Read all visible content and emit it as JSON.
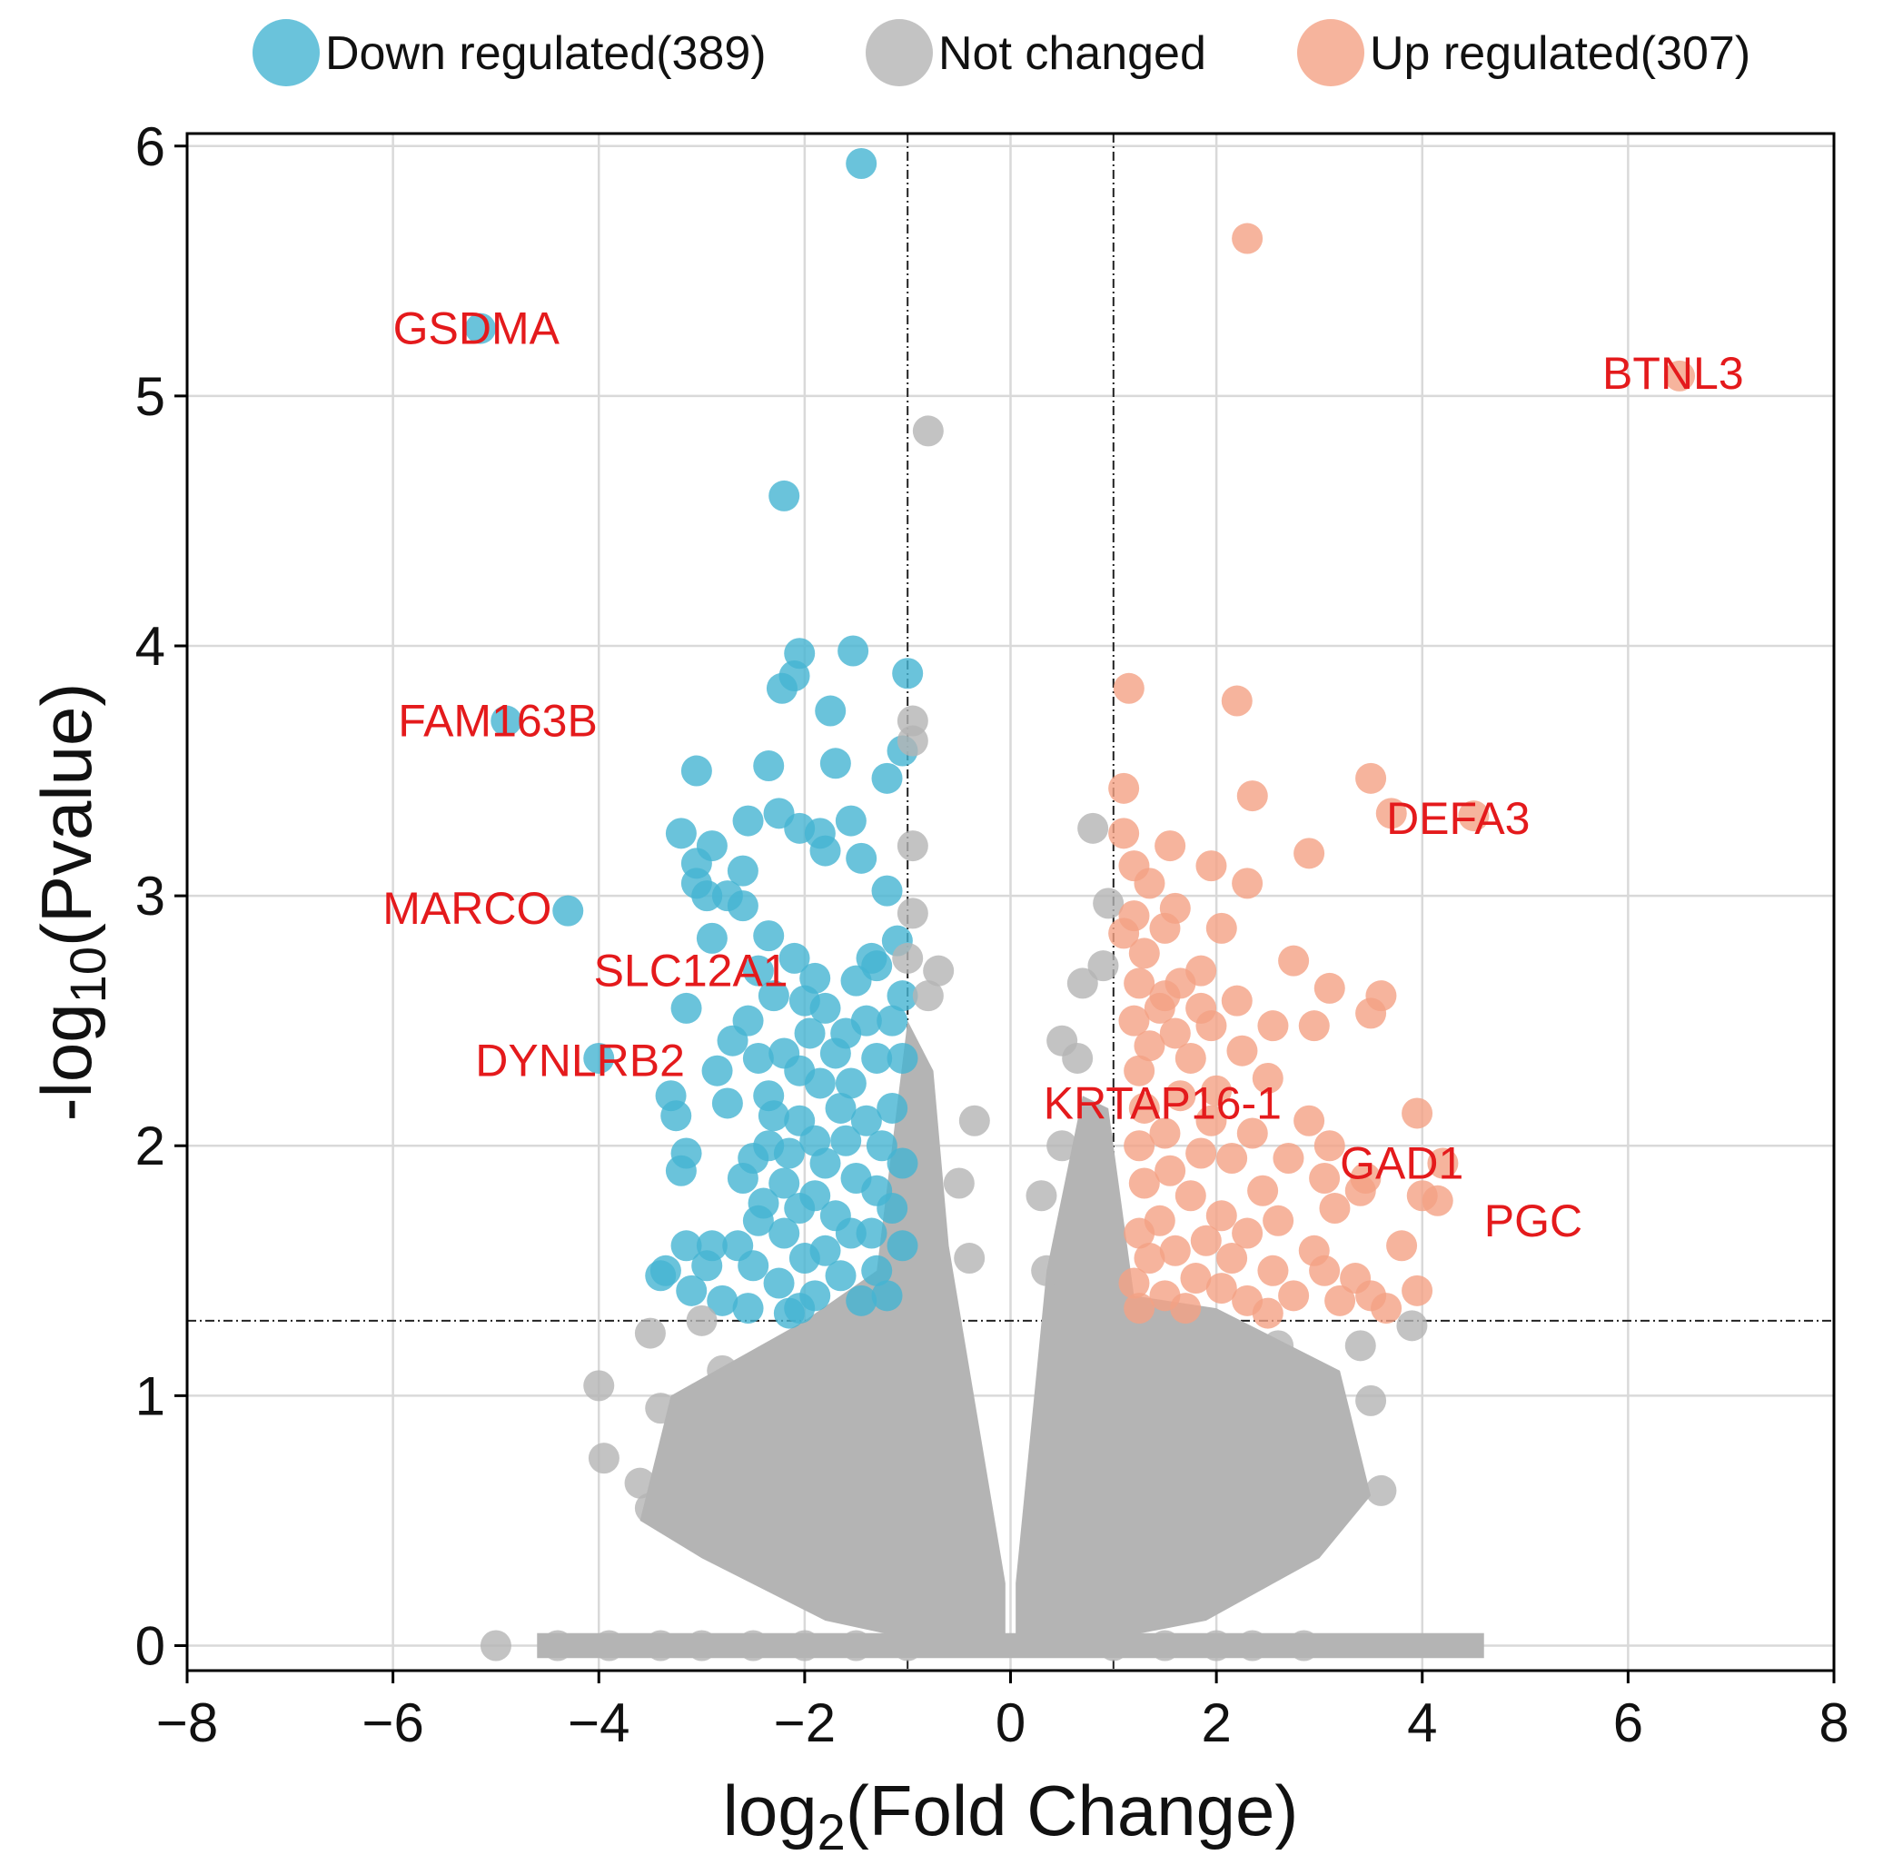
{
  "chart_data": {
    "type": "scatter",
    "xlabel": {
      "main": "log",
      "sub": "2",
      "rest": "(Fold Change)"
    },
    "ylabel": {
      "main": "-log",
      "sub": "10",
      "rest": "(Pvalue)"
    },
    "xlim": [
      -8,
      8
    ],
    "ylim": [
      -0.1,
      6.05
    ],
    "xticks": [
      -8,
      -6,
      -4,
      -2,
      0,
      2,
      4,
      6,
      8
    ],
    "xtick_labels": [
      "−8",
      "−6",
      "−4",
      "−2",
      "0",
      "2",
      "4",
      "6",
      "8"
    ],
    "yticks": [
      0,
      1,
      2,
      3,
      4,
      5,
      6
    ],
    "ytick_labels": [
      "0",
      "1",
      "2",
      "3",
      "4",
      "5",
      "6"
    ],
    "grid": true,
    "legend_placement": "top",
    "thresholds": {
      "fold_change": [
        -1,
        1
      ],
      "pvalue": 1.3
    },
    "colors": {
      "down": "#45b4d2",
      "nc": "#b4b4b4",
      "up": "#f4a185",
      "threshold_line": "#222222",
      "label": "#e41a1c"
    },
    "series": [
      {
        "key": "down",
        "name": "Down regulated(389)",
        "points": [
          [
            -1.45,
            5.93
          ],
          [
            -2.2,
            4.6
          ],
          [
            -5.15,
            5.27
          ],
          [
            -4.9,
            3.7
          ],
          [
            -4.3,
            2.94
          ],
          [
            -4.0,
            2.35
          ],
          [
            -1.53,
            3.98
          ],
          [
            -2.05,
            3.97
          ],
          [
            -2.1,
            3.88
          ],
          [
            -2.22,
            3.83
          ],
          [
            -1.0,
            3.89
          ],
          [
            -1.75,
            3.74
          ],
          [
            -3.05,
            3.5
          ],
          [
            -2.35,
            3.52
          ],
          [
            -1.7,
            3.53
          ],
          [
            -1.05,
            3.58
          ],
          [
            -1.2,
            3.47
          ],
          [
            -2.25,
            3.33
          ],
          [
            -2.55,
            3.3
          ],
          [
            -1.55,
            3.3
          ],
          [
            -2.05,
            3.27
          ],
          [
            -1.85,
            3.25
          ],
          [
            -3.2,
            3.25
          ],
          [
            -2.9,
            3.2
          ],
          [
            -3.05,
            3.13
          ],
          [
            -2.6,
            3.1
          ],
          [
            -1.8,
            3.18
          ],
          [
            -1.45,
            3.15
          ],
          [
            -2.95,
            3.0
          ],
          [
            -3.05,
            3.05
          ],
          [
            -2.75,
            3.0
          ],
          [
            -1.2,
            3.02
          ],
          [
            -2.6,
            2.96
          ],
          [
            -2.35,
            2.84
          ],
          [
            -2.9,
            2.83
          ],
          [
            -1.35,
            2.75
          ],
          [
            -1.1,
            2.82
          ],
          [
            -2.45,
            2.7
          ],
          [
            -2.1,
            2.75
          ],
          [
            -1.9,
            2.67
          ],
          [
            -1.5,
            2.66
          ],
          [
            -1.3,
            2.72
          ],
          [
            -1.05,
            2.6
          ],
          [
            -2.3,
            2.6
          ],
          [
            -2.0,
            2.58
          ],
          [
            -1.8,
            2.55
          ],
          [
            -1.4,
            2.5
          ],
          [
            -1.15,
            2.5
          ],
          [
            -3.15,
            2.55
          ],
          [
            -2.85,
            2.3
          ],
          [
            -2.55,
            2.5
          ],
          [
            -2.7,
            2.42
          ],
          [
            -1.95,
            2.45
          ],
          [
            -1.6,
            2.45
          ],
          [
            -2.45,
            2.35
          ],
          [
            -2.2,
            2.37
          ],
          [
            -1.7,
            2.37
          ],
          [
            -1.3,
            2.35
          ],
          [
            -1.05,
            2.35
          ],
          [
            -2.35,
            2.2
          ],
          [
            -2.05,
            2.3
          ],
          [
            -1.85,
            2.25
          ],
          [
            -1.55,
            2.25
          ],
          [
            -3.3,
            2.2
          ],
          [
            -3.25,
            2.12
          ],
          [
            -2.75,
            2.17
          ],
          [
            -2.3,
            2.12
          ],
          [
            -1.15,
            2.15
          ],
          [
            -1.65,
            2.15
          ],
          [
            -2.05,
            2.1
          ],
          [
            -1.4,
            2.1
          ],
          [
            -1.9,
            2.02
          ],
          [
            -2.15,
            1.97
          ],
          [
            -2.35,
            2.0
          ],
          [
            -1.6,
            2.02
          ],
          [
            -1.25,
            2.0
          ],
          [
            -3.15,
            1.97
          ],
          [
            -2.5,
            1.95
          ],
          [
            -2.6,
            1.87
          ],
          [
            -1.8,
            1.93
          ],
          [
            -1.05,
            1.93
          ],
          [
            -3.2,
            1.9
          ],
          [
            -2.2,
            1.85
          ],
          [
            -1.5,
            1.87
          ],
          [
            -1.3,
            1.82
          ],
          [
            -1.9,
            1.8
          ],
          [
            -2.4,
            1.77
          ],
          [
            -2.05,
            1.75
          ],
          [
            -1.7,
            1.72
          ],
          [
            -1.15,
            1.75
          ],
          [
            -2.2,
            1.65
          ],
          [
            -2.45,
            1.7
          ],
          [
            -1.55,
            1.65
          ],
          [
            -1.35,
            1.65
          ],
          [
            -2.9,
            1.6
          ],
          [
            -2.65,
            1.6
          ],
          [
            -3.15,
            1.6
          ],
          [
            -2.0,
            1.55
          ],
          [
            -1.8,
            1.58
          ],
          [
            -1.05,
            1.6
          ],
          [
            -3.4,
            1.48
          ],
          [
            -2.95,
            1.52
          ],
          [
            -2.5,
            1.52
          ],
          [
            -2.25,
            1.45
          ],
          [
            -1.65,
            1.48
          ],
          [
            -1.3,
            1.5
          ],
          [
            -3.1,
            1.42
          ],
          [
            -2.8,
            1.38
          ],
          [
            -2.55,
            1.35
          ],
          [
            -1.9,
            1.4
          ],
          [
            -2.05,
            1.35
          ],
          [
            -1.45,
            1.38
          ],
          [
            -1.2,
            1.4
          ],
          [
            -3.35,
            1.5
          ],
          [
            -2.15,
            1.33
          ]
        ]
      },
      {
        "key": "nc",
        "name": "Not changed",
        "points": [
          [
            -0.8,
            4.86
          ],
          [
            -0.95,
            3.7
          ],
          [
            -0.95,
            3.62
          ],
          [
            -0.95,
            3.2
          ],
          [
            -0.95,
            2.93
          ],
          [
            -1.0,
            2.75
          ],
          [
            -0.7,
            2.7
          ],
          [
            -0.8,
            2.6
          ],
          [
            0.8,
            3.27
          ],
          [
            0.95,
            2.97
          ],
          [
            0.9,
            2.72
          ],
          [
            0.7,
            2.65
          ],
          [
            0.5,
            2.42
          ],
          [
            0.65,
            2.35
          ],
          [
            -0.35,
            2.1
          ],
          [
            0.5,
            2.0
          ],
          [
            -0.5,
            1.85
          ],
          [
            0.3,
            1.8
          ],
          [
            -0.4,
            1.55
          ],
          [
            0.35,
            1.5
          ],
          [
            -5.0,
            0.0
          ],
          [
            -4.4,
            0.0
          ],
          [
            -3.9,
            0.0
          ],
          [
            -3.4,
            0.0
          ],
          [
            -3.0,
            0.0
          ],
          [
            -2.5,
            0.0
          ],
          [
            -2.0,
            0.0
          ],
          [
            -1.5,
            0.0
          ],
          [
            -1.0,
            0.0
          ],
          [
            1.0,
            0.0
          ],
          [
            1.5,
            0.0
          ],
          [
            2.0,
            0.0
          ],
          [
            2.35,
            0.0
          ],
          [
            2.85,
            0.0
          ],
          [
            -4.0,
            1.04
          ],
          [
            -3.95,
            0.75
          ],
          [
            -3.6,
            0.65
          ],
          [
            -3.5,
            0.55
          ],
          [
            -3.4,
            0.95
          ],
          [
            -3.5,
            1.25
          ],
          [
            -3.0,
            1.3
          ],
          [
            -2.8,
            1.1
          ],
          [
            -2.4,
            1.0
          ],
          [
            -2.9,
            0.9
          ],
          [
            -2.5,
            0.8
          ],
          [
            -1.8,
            0.9
          ],
          [
            3.9,
            1.28
          ],
          [
            3.6,
            0.62
          ],
          [
            3.5,
            0.98
          ],
          [
            3.4,
            1.2
          ],
          [
            3.2,
            0.8
          ],
          [
            3.0,
            1.05
          ],
          [
            2.6,
            1.2
          ],
          [
            2.4,
            0.9
          ],
          [
            2.7,
            0.7
          ],
          [
            2.0,
            1.1
          ],
          [
            1.8,
            0.8
          ]
        ]
      },
      {
        "key": "up",
        "name": "Up regulated(307)",
        "points": [
          [
            2.3,
            5.63
          ],
          [
            6.5,
            5.08
          ],
          [
            2.2,
            3.78
          ],
          [
            1.15,
            3.83
          ],
          [
            3.5,
            3.47
          ],
          [
            2.35,
            3.4
          ],
          [
            1.1,
            3.43
          ],
          [
            3.7,
            3.33
          ],
          [
            4.5,
            3.32
          ],
          [
            1.1,
            3.25
          ],
          [
            1.55,
            3.2
          ],
          [
            2.9,
            3.17
          ],
          [
            1.2,
            3.12
          ],
          [
            1.95,
            3.12
          ],
          [
            2.3,
            3.05
          ],
          [
            1.35,
            3.05
          ],
          [
            1.6,
            2.95
          ],
          [
            1.2,
            2.92
          ],
          [
            1.5,
            2.87
          ],
          [
            2.05,
            2.87
          ],
          [
            1.1,
            2.85
          ],
          [
            1.3,
            2.77
          ],
          [
            2.75,
            2.74
          ],
          [
            1.85,
            2.7
          ],
          [
            1.25,
            2.65
          ],
          [
            1.65,
            2.65
          ],
          [
            1.5,
            2.6
          ],
          [
            3.1,
            2.63
          ],
          [
            3.6,
            2.6
          ],
          [
            2.2,
            2.58
          ],
          [
            1.45,
            2.55
          ],
          [
            1.85,
            2.55
          ],
          [
            3.5,
            2.53
          ],
          [
            1.2,
            2.5
          ],
          [
            1.95,
            2.48
          ],
          [
            2.55,
            2.48
          ],
          [
            2.95,
            2.48
          ],
          [
            1.6,
            2.45
          ],
          [
            1.35,
            2.4
          ],
          [
            2.25,
            2.38
          ],
          [
            1.75,
            2.35
          ],
          [
            1.25,
            2.3
          ],
          [
            2.5,
            2.27
          ],
          [
            2.0,
            2.22
          ],
          [
            1.65,
            2.2
          ],
          [
            1.3,
            2.15
          ],
          [
            3.95,
            2.13
          ],
          [
            2.9,
            2.1
          ],
          [
            1.95,
            2.1
          ],
          [
            1.5,
            2.05
          ],
          [
            2.35,
            2.05
          ],
          [
            3.1,
            2.0
          ],
          [
            1.25,
            2.0
          ],
          [
            1.85,
            1.97
          ],
          [
            2.15,
            1.95
          ],
          [
            2.7,
            1.95
          ],
          [
            4.2,
            1.93
          ],
          [
            1.55,
            1.9
          ],
          [
            3.45,
            1.87
          ],
          [
            3.05,
            1.87
          ],
          [
            1.3,
            1.85
          ],
          [
            2.45,
            1.82
          ],
          [
            3.4,
            1.82
          ],
          [
            4.0,
            1.8
          ],
          [
            1.75,
            1.8
          ],
          [
            4.15,
            1.78
          ],
          [
            3.15,
            1.75
          ],
          [
            2.05,
            1.72
          ],
          [
            1.45,
            1.7
          ],
          [
            2.6,
            1.7
          ],
          [
            1.25,
            1.65
          ],
          [
            2.3,
            1.65
          ],
          [
            1.9,
            1.62
          ],
          [
            3.8,
            1.6
          ],
          [
            1.6,
            1.58
          ],
          [
            2.95,
            1.58
          ],
          [
            2.15,
            1.55
          ],
          [
            1.35,
            1.55
          ],
          [
            2.55,
            1.5
          ],
          [
            3.05,
            1.5
          ],
          [
            1.8,
            1.47
          ],
          [
            3.35,
            1.47
          ],
          [
            1.2,
            1.45
          ],
          [
            2.05,
            1.43
          ],
          [
            3.95,
            1.42
          ],
          [
            2.75,
            1.4
          ],
          [
            1.5,
            1.4
          ],
          [
            2.3,
            1.38
          ],
          [
            3.2,
            1.38
          ],
          [
            1.7,
            1.35
          ],
          [
            3.65,
            1.35
          ],
          [
            2.5,
            1.33
          ],
          [
            1.25,
            1.35
          ],
          [
            3.5,
            1.4
          ]
        ]
      }
    ],
    "labels": [
      {
        "text": "GSDMA",
        "x": -6.0,
        "y": 5.27
      },
      {
        "text": "BTNL3",
        "x": 5.75,
        "y": 5.09
      },
      {
        "text": "FAM163B",
        "x": -5.95,
        "y": 3.7
      },
      {
        "text": "DEFA3",
        "x": 3.65,
        "y": 3.31
      },
      {
        "text": "MARCO",
        "x": -6.1,
        "y": 2.95
      },
      {
        "text": "SLC12A1",
        "x": -4.05,
        "y": 2.7
      },
      {
        "text": "DYNLRB2",
        "x": -5.2,
        "y": 2.34
      },
      {
        "text": "KRTAP16-1",
        "x": 0.32,
        "y": 2.17
      },
      {
        "text": "GAD1",
        "x": 3.2,
        "y": 1.93
      },
      {
        "text": "PGC",
        "x": 4.6,
        "y": 1.7
      }
    ]
  }
}
